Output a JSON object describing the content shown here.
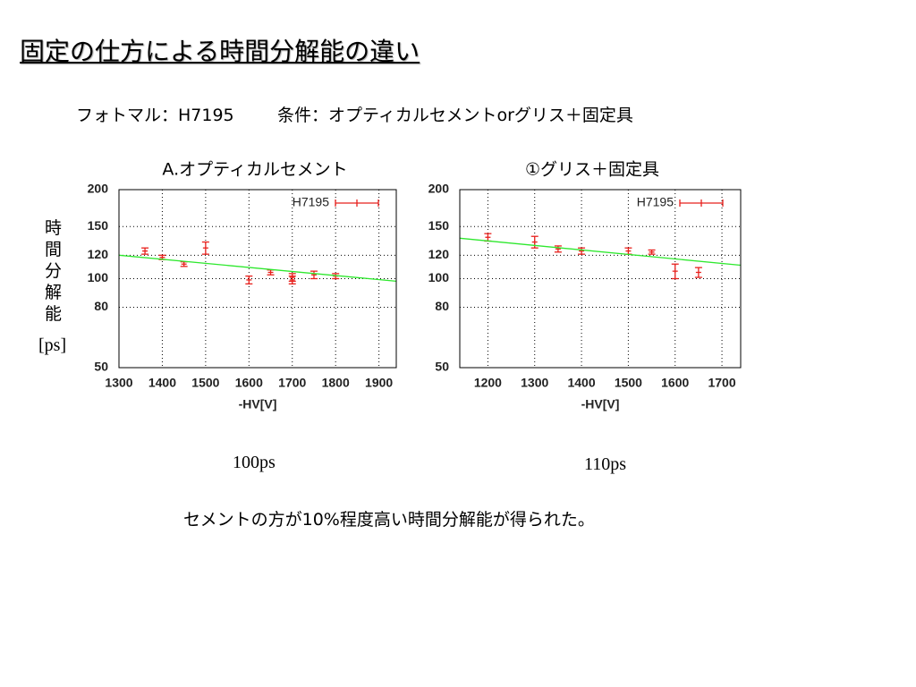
{
  "slide": {
    "title": "固定の仕方による時間分解能の違い",
    "pmt": "フォトマル：H7195",
    "condition": "条件：オプティカルセメントorグリス＋固定具",
    "y_label": "時間分解能",
    "y_unit": "[ps]",
    "results": [
      "100ps",
      "110ps"
    ],
    "conclusion": "セメントの方が10%程度高い時間分解能が得られた。"
  },
  "chart_data": [
    {
      "type": "errorbar",
      "title": "A.オプティカルセメント",
      "x_label": "-HV[V]",
      "xlim": [
        1300,
        1940
      ],
      "xticks": [
        1300,
        1400,
        1500,
        1600,
        1700,
        1800,
        1900
      ],
      "ylim": [
        50,
        200
      ],
      "yticks": [
        50,
        80,
        100,
        120,
        150,
        200
      ],
      "log_y": true,
      "grid": true,
      "legend": "top-right",
      "series": [
        {
          "name": "H7195",
          "color": "#e8201c",
          "x": [
            1360,
            1400,
            1450,
            1500,
            1600,
            1650,
            1700,
            1700,
            1750,
            1800
          ],
          "values": [
            124,
            118,
            112,
            127,
            99,
            105,
            101,
            99,
            103,
            102
          ],
          "errors": [
            3,
            2,
            2,
            6,
            3,
            2,
            3,
            3,
            3,
            2
          ]
        },
        {
          "color": "#2ee82e",
          "x": [
            1300,
            1940
          ],
          "values": [
            120,
            98
          ]
        }
      ]
    },
    {
      "type": "errorbar",
      "title": "①グリス＋固定具",
      "x_label": "-HV[V]",
      "xlim": [
        1140,
        1740
      ],
      "xticks": [
        1200,
        1300,
        1400,
        1500,
        1600,
        1700
      ],
      "ylim": [
        50,
        200
      ],
      "yticks": [
        50,
        80,
        100,
        120,
        150,
        200
      ],
      "log_y": true,
      "grid": true,
      "legend": "top-right",
      "series": [
        {
          "name": "H7195",
          "color": "#e8201c",
          "x": [
            1200,
            1300,
            1350,
            1400,
            1500,
            1550,
            1600,
            1650
          ],
          "values": [
            138,
            133,
            126,
            124,
            124,
            123,
            106,
            105
          ],
          "errors": [
            4,
            6,
            3,
            3,
            3,
            2,
            6,
            4
          ]
        },
        {
          "color": "#2ee82e",
          "x": [
            1140,
            1740
          ],
          "values": [
            137,
            111
          ]
        }
      ]
    }
  ]
}
